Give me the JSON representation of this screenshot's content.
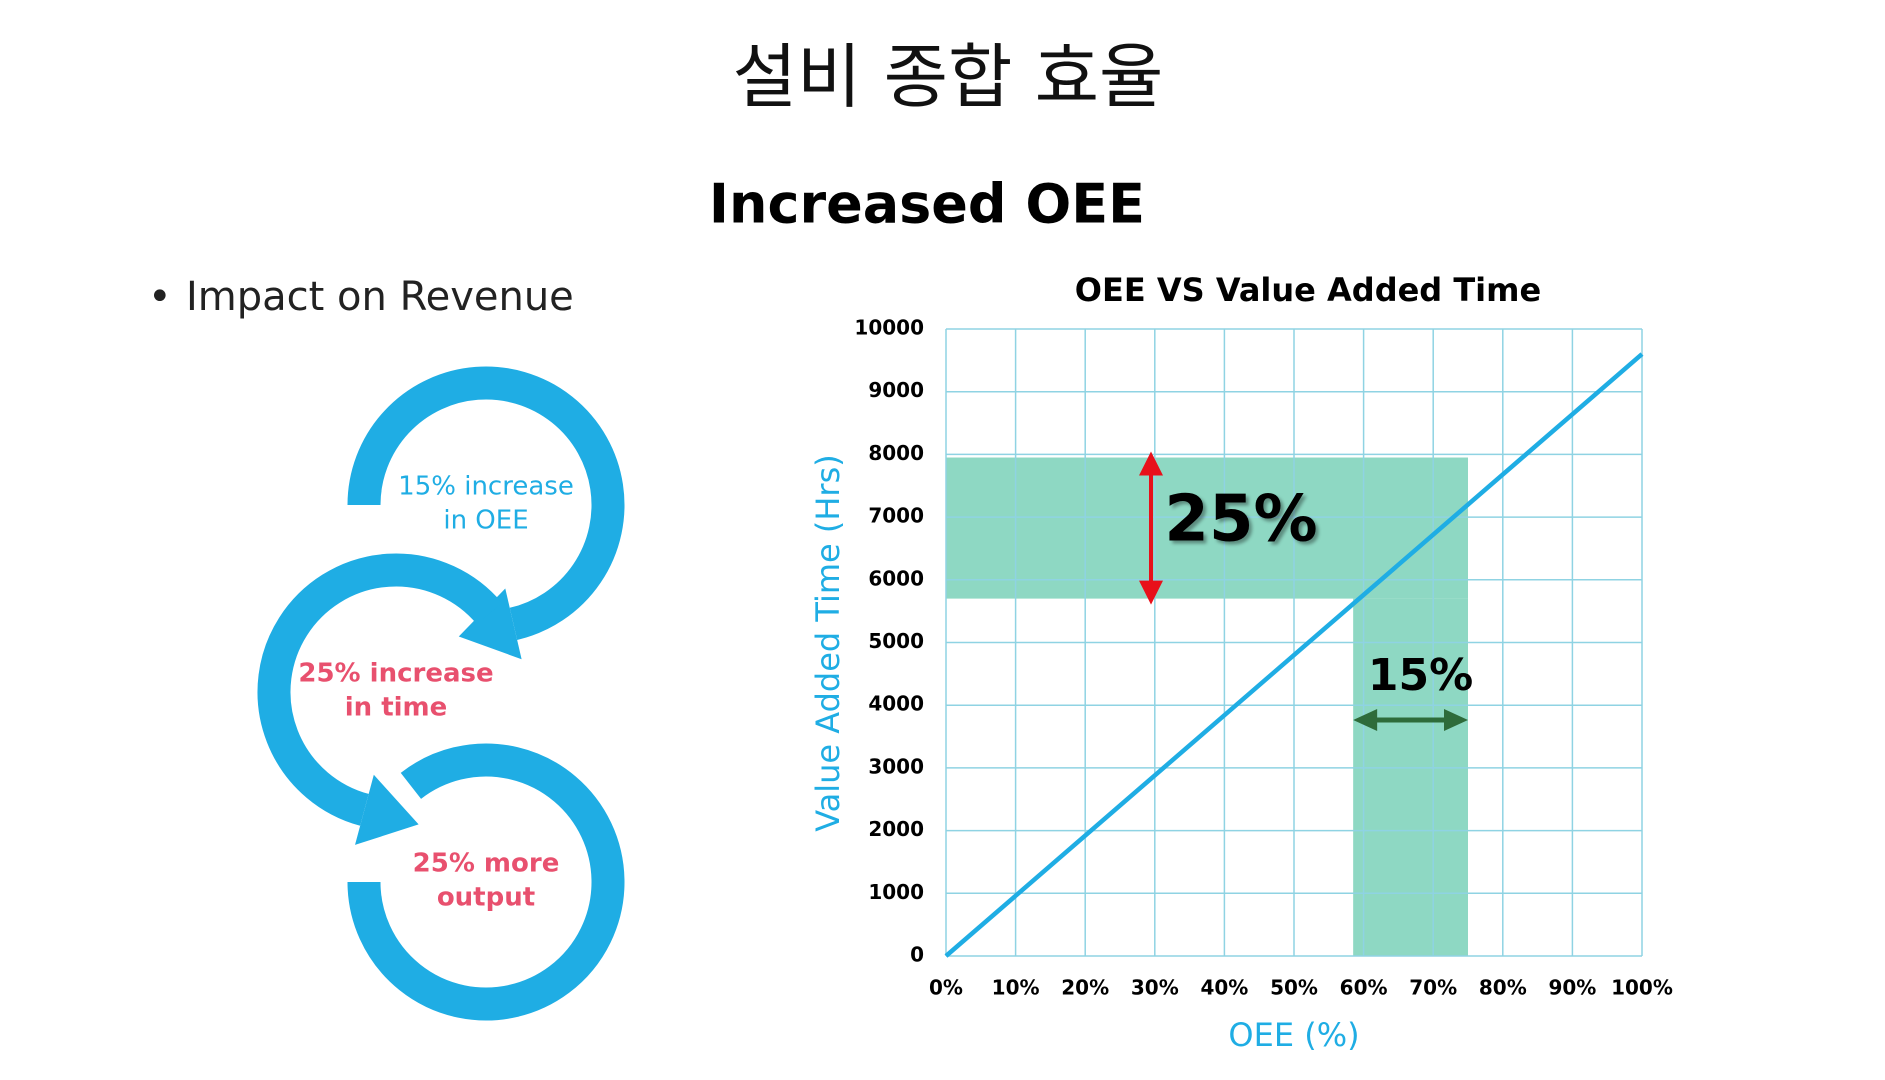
{
  "header": {
    "title": "설비 종합 효율",
    "subtitle": "Increased OEE"
  },
  "bullet": "Impact on Revenue",
  "cycle": [
    {
      "lines": [
        "15% increase",
        "in OEE"
      ]
    },
    {
      "lines": [
        "25% increase",
        "in time"
      ]
    },
    {
      "lines": [
        "25% more",
        "output"
      ]
    }
  ],
  "chart_data": {
    "type": "line",
    "title": "OEE VS Value Added Time",
    "x_label": "OEE (%)",
    "y_label": "Value Added Time (Hrs)",
    "x": [
      0,
      100
    ],
    "values": [
      0,
      9600
    ],
    "color": "#1fade4",
    "xlim": [
      0,
      100
    ],
    "xticks": [
      {
        "value": 0,
        "label": "0%"
      },
      {
        "value": 10,
        "label": "10%"
      },
      {
        "value": 20,
        "label": "20%"
      },
      {
        "value": 30,
        "label": "30%"
      },
      {
        "value": 40,
        "label": "40%"
      },
      {
        "value": 50,
        "label": "50%"
      },
      {
        "value": 60,
        "label": "60%"
      },
      {
        "value": 70,
        "label": "70%"
      },
      {
        "value": 80,
        "label": "80%"
      },
      {
        "value": 90,
        "label": "90%"
      },
      {
        "value": 100,
        "label": "100%"
      }
    ],
    "ylim": [
      0,
      10000
    ],
    "yticks": [
      0,
      1000,
      2000,
      3000,
      4000,
      5000,
      6000,
      7000,
      8000,
      9000,
      10000
    ],
    "grid": true,
    "shaded_regions": [
      {
        "x": [
          0,
          75
        ],
        "y": [
          5700,
          7950
        ],
        "label": "25%"
      },
      {
        "x": [
          58.5,
          75
        ],
        "y": [
          0,
          5700
        ],
        "label": "15%"
      }
    ]
  }
}
